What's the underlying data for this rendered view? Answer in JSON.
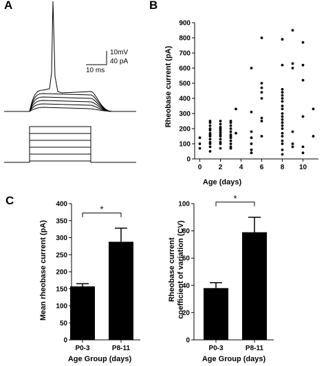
{
  "panels": {
    "a": "A",
    "b": "B",
    "c": "C"
  },
  "scale_bar": {
    "voltage": "10mV",
    "current": "40 pA",
    "time": "10 ms"
  },
  "chart_data": [
    {
      "type": "line",
      "title": "",
      "traces": {
        "count": 6,
        "spike_trace_index": 5
      },
      "steps": {
        "count": 5
      }
    },
    {
      "type": "scatter",
      "xlabel": "Age (days)",
      "ylabel": "Rheobase current (pA)",
      "xlim": [
        -0.5,
        11.5
      ],
      "ylim": [
        0,
        900
      ],
      "xticks": [
        0,
        2,
        4,
        6,
        8,
        10
      ],
      "yticks": [
        0,
        100,
        200,
        300,
        400,
        500,
        600,
        700,
        800,
        900
      ],
      "points": [
        [
          0,
          70
        ],
        [
          0,
          100
        ],
        [
          0,
          140
        ],
        [
          1,
          50
        ],
        [
          1,
          80
        ],
        [
          1,
          100
        ],
        [
          1,
          110
        ],
        [
          1,
          130
        ],
        [
          1,
          150
        ],
        [
          1,
          160
        ],
        [
          1,
          170
        ],
        [
          1,
          190
        ],
        [
          1,
          200
        ],
        [
          1,
          220
        ],
        [
          1,
          240
        ],
        [
          1,
          250
        ],
        [
          2,
          70
        ],
        [
          2,
          100
        ],
        [
          2,
          110
        ],
        [
          2,
          130
        ],
        [
          2,
          150
        ],
        [
          2,
          160
        ],
        [
          2,
          175
        ],
        [
          2,
          190
        ],
        [
          2,
          200
        ],
        [
          2,
          210
        ],
        [
          2,
          230
        ],
        [
          2,
          250
        ],
        [
          3,
          70
        ],
        [
          3,
          80
        ],
        [
          3,
          100
        ],
        [
          3,
          120
        ],
        [
          3,
          140
        ],
        [
          3,
          150
        ],
        [
          3,
          160
        ],
        [
          3,
          180
        ],
        [
          3,
          200
        ],
        [
          3,
          220
        ],
        [
          3,
          240
        ],
        [
          3,
          250
        ],
        [
          3.5,
          170
        ],
        [
          3.5,
          330
        ],
        [
          5,
          40
        ],
        [
          5,
          60
        ],
        [
          5,
          100
        ],
        [
          5,
          140
        ],
        [
          5,
          180
        ],
        [
          5,
          310
        ],
        [
          5,
          600
        ],
        [
          6,
          150
        ],
        [
          6,
          250
        ],
        [
          6,
          270
        ],
        [
          6,
          400
        ],
        [
          6,
          440
        ],
        [
          6,
          470
        ],
        [
          6,
          500
        ],
        [
          6,
          800
        ],
        [
          8,
          30
        ],
        [
          8,
          60
        ],
        [
          8,
          100
        ],
        [
          8,
          120
        ],
        [
          8,
          150
        ],
        [
          8,
          170
        ],
        [
          8,
          200
        ],
        [
          8,
          220
        ],
        [
          8,
          240
        ],
        [
          8,
          260
        ],
        [
          8,
          280
        ],
        [
          8,
          300
        ],
        [
          8,
          330
        ],
        [
          8,
          350
        ],
        [
          8,
          380
        ],
        [
          8,
          400
        ],
        [
          8,
          420
        ],
        [
          8,
          440
        ],
        [
          8,
          460
        ],
        [
          8,
          620
        ],
        [
          8,
          790
        ],
        [
          9,
          80
        ],
        [
          9,
          100
        ],
        [
          9,
          180
        ],
        [
          9,
          600
        ],
        [
          9,
          630
        ],
        [
          9,
          850
        ],
        [
          10,
          40
        ],
        [
          10,
          80
        ],
        [
          10,
          280
        ],
        [
          10,
          520
        ],
        [
          10,
          620
        ],
        [
          10,
          770
        ],
        [
          11,
          150
        ],
        [
          11,
          330
        ]
      ]
    },
    {
      "type": "bar",
      "xlabel": "Age Group (days)",
      "ylabel": "Mean rheobase current (pA)",
      "categories": [
        "P0-3",
        "P8-11"
      ],
      "values": [
        157,
        288
      ],
      "errors": [
        8,
        40
      ],
      "ylim": [
        0,
        400
      ],
      "yticks": [
        0,
        50,
        100,
        150,
        200,
        250,
        300,
        350,
        400
      ],
      "significance": "*"
    },
    {
      "type": "bar",
      "xlabel": "Age Group (days)",
      "ylabel_lines": [
        "Rheobase current",
        "coefficient of variation (CV)"
      ],
      "categories": [
        "P0-3",
        "P8-11"
      ],
      "values": [
        38,
        79
      ],
      "errors": [
        4,
        11
      ],
      "ylim": [
        0,
        100
      ],
      "yticks": [
        0,
        20,
        40,
        60,
        80,
        100
      ],
      "significance": "*"
    }
  ]
}
